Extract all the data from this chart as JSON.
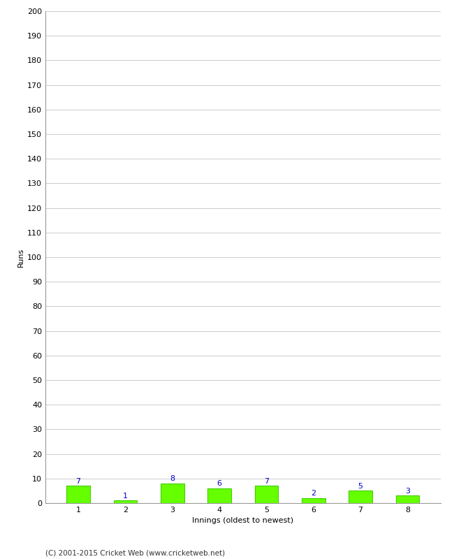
{
  "innings": [
    1,
    2,
    3,
    4,
    5,
    6,
    7,
    8
  ],
  "runs": [
    7,
    1,
    8,
    6,
    7,
    2,
    5,
    3
  ],
  "bar_color": "#66ff00",
  "bar_edge_color": "#44cc00",
  "label_color": "#0000cc",
  "xlabel": "Innings (oldest to newest)",
  "ylabel": "Runs",
  "ylim": [
    0,
    200
  ],
  "ytick_step": 10,
  "footer": "(C) 2001-2015 Cricket Web (www.cricketweb.net)",
  "background_color": "#ffffff",
  "grid_color": "#cccccc",
  "label_fontsize": 8,
  "axis_fontsize": 8,
  "footer_fontsize": 7.5,
  "bar_width": 0.5
}
